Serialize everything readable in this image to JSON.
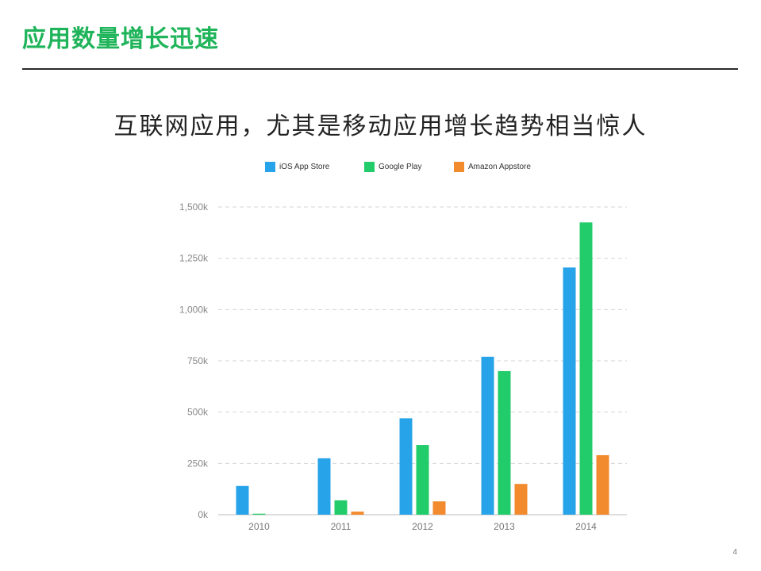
{
  "slide": {
    "title": "应用数量增长迅速",
    "headline": "互联网应用，尤其是移动应用增长趋势相当惊人",
    "page_number": "4",
    "title_color": "#1fb45a"
  },
  "chart_data": {
    "type": "bar",
    "title": "",
    "xlabel": "",
    "ylabel": "",
    "categories": [
      "2010",
      "2011",
      "2012",
      "2013",
      "2014"
    ],
    "series": [
      {
        "name": "iOS App Store",
        "color": "#27a3e9",
        "values": [
          140,
          275,
          470,
          770,
          1205
        ]
      },
      {
        "name": "Google Play",
        "color": "#22cc6a",
        "values": [
          5,
          70,
          340,
          700,
          1425
        ]
      },
      {
        "name": "Amazon Appstore",
        "color": "#f28a2e",
        "values": [
          0,
          15,
          65,
          150,
          290
        ]
      }
    ],
    "ylim": [
      0,
      1500
    ],
    "yticks": [
      0,
      250,
      500,
      750,
      1000,
      1250,
      1500
    ],
    "ytick_labels": [
      "0k",
      "250k",
      "500k",
      "750k",
      "1,000k",
      "1,250k",
      "1,500k"
    ],
    "grid": true,
    "legend_position": "top"
  }
}
